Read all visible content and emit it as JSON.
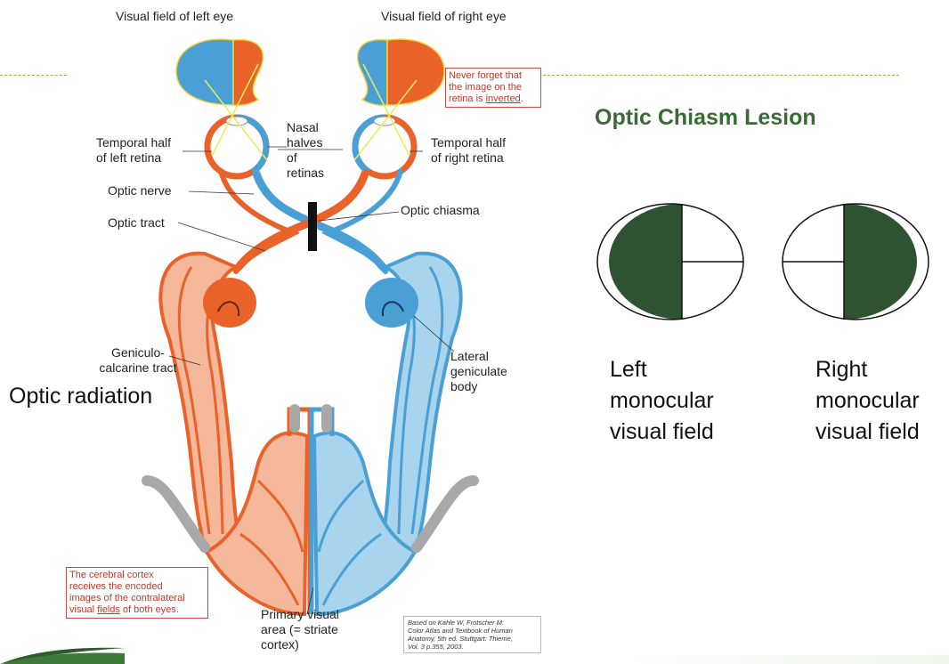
{
  "diagram": {
    "label_visual_field_left": "Visual field of left eye",
    "label_visual_field_right": "Visual field of right eye",
    "label_nasal_halves": "Nasal\nhalves\nof\nretinas",
    "label_temporal_left": "Temporal half\nof left retina",
    "label_temporal_right": "Temporal half\nof right retina",
    "label_optic_nerve": "Optic nerve",
    "label_optic_tract": "Optic tract",
    "label_optic_chiasma": "Optic chiasma",
    "label_geniculo": "Geniculo-\ncalcarine tract",
    "label_lateral_geniculate": "Lateral\ngeniculate\nbody",
    "label_primary_visual": "Primary visual\narea (= striate\ncortex)",
    "note_inverted_pre": "Never forget that\nthe image on the\nretina is ",
    "note_inverted_word": "inverted",
    "note_inverted_post": ".",
    "note_cortex_pre": "The cerebral cortex\nreceives the encoded\nimages of the contralateral\nvisual ",
    "note_cortex_word": "fields",
    "note_cortex_post": " of both eyes.",
    "citation": "Based on Kahle W, Frotscher M:\nColor Atlas and Textbook of Human\nAnatomy, 5th ed. Stuttgart: Thieme,\nVol. 3 p.355, 2003.",
    "colors": {
      "orange": "#e8622a",
      "blue": "#4a9fd5",
      "light_orange": "#f6b89a",
      "light_blue": "#a9d4ee",
      "lesion": "#111111"
    }
  },
  "overlay": {
    "optic_radiation": "Optic radiation"
  },
  "panel": {
    "title": "Optic Chiasm Lesion",
    "left_caption": "Left\nmonocular\nvisual field",
    "right_caption": "Right\nmonocular\nvisual field",
    "fill_color": "#2f5233"
  }
}
